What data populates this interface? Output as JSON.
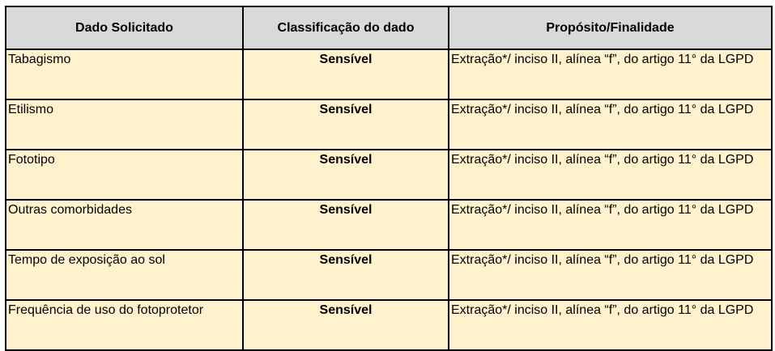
{
  "table": {
    "headers": [
      "Dado Solicitado",
      "Classificação do dado",
      "Propósito/Finalidade"
    ],
    "rows": [
      {
        "dado": "Tabagismo",
        "classificacao": "Sensível",
        "proposito": "Extração*/ inciso II, alínea “f”, do artigo 11° da LGPD"
      },
      {
        "dado": "Etilismo",
        "classificacao": "Sensível",
        "proposito": "Extração*/ inciso II, alínea “f”, do artigo 11° da LGPD"
      },
      {
        "dado": "Fototipo",
        "classificacao": "Sensível",
        "proposito": "Extração*/ inciso II, alínea “f”, do artigo 11° da LGPD"
      },
      {
        "dado": "Outras comorbidades",
        "classificacao": "Sensível",
        "proposito": "Extração*/ inciso II, alínea “f”, do artigo 11° da LGPD"
      },
      {
        "dado": "Tempo de exposição ao sol",
        "classificacao": "Sensível",
        "proposito": "Extração*/ inciso II, alínea “f”, do artigo 11° da LGPD"
      },
      {
        "dado": "Frequência de uso do fotoprotetor",
        "classificacao": "Sensível",
        "proposito": "Extração*/ inciso II, alínea “f”, do artigo 11° da LGPD"
      }
    ]
  },
  "colors": {
    "header_bg": "#d9d9d9",
    "row_bg": "#fff2cc",
    "border": "#000000"
  }
}
